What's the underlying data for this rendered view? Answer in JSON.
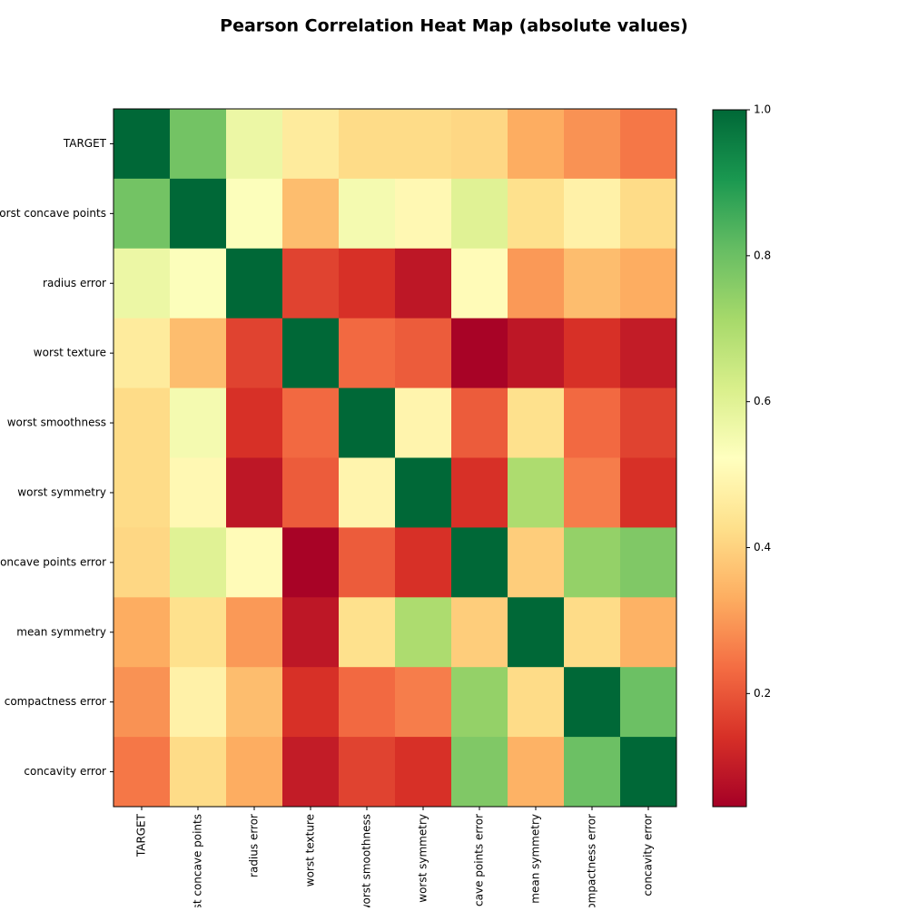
{
  "chart_data": {
    "type": "heatmap",
    "title": "Pearson Correlation Heat Map (absolute values)",
    "categories": [
      "TARGET",
      "worst concave points",
      "radius error",
      "worst texture",
      "worst smoothness",
      "worst symmetry",
      "concave points error",
      "mean symmetry",
      "compactness error",
      "concavity error"
    ],
    "values": [
      [
        1,
        0.79,
        0.57,
        0.46,
        0.42,
        0.42,
        0.41,
        0.33,
        0.29,
        0.25
      ],
      [
        0.79,
        1,
        0.53,
        0.36,
        0.55,
        0.5,
        0.6,
        0.43,
        0.48,
        0.42
      ],
      [
        0.57,
        0.53,
        1,
        0.17,
        0.14,
        0.09,
        0.51,
        0.3,
        0.36,
        0.33
      ],
      [
        0.46,
        0.36,
        0.17,
        1,
        0.23,
        0.21,
        0.05,
        0.09,
        0.14,
        0.1
      ],
      [
        0.42,
        0.55,
        0.14,
        0.23,
        1,
        0.49,
        0.21,
        0.43,
        0.23,
        0.17
      ],
      [
        0.42,
        0.5,
        0.09,
        0.21,
        0.49,
        1,
        0.14,
        0.7,
        0.26,
        0.14
      ],
      [
        0.41,
        0.6,
        0.51,
        0.05,
        0.21,
        0.14,
        1,
        0.39,
        0.74,
        0.77
      ],
      [
        0.33,
        0.43,
        0.3,
        0.09,
        0.43,
        0.7,
        0.39,
        1,
        0.42,
        0.34
      ],
      [
        0.29,
        0.48,
        0.36,
        0.14,
        0.23,
        0.26,
        0.74,
        0.42,
        1,
        0.8
      ],
      [
        0.25,
        0.42,
        0.33,
        0.1,
        0.17,
        0.14,
        0.77,
        0.34,
        0.8,
        1
      ]
    ],
    "colormap": "RdYlGn",
    "zlim": [
      0.045,
      1
    ],
    "zticks": [
      0.2,
      0.4,
      0.6,
      0.8,
      {
        "value": 1,
        "label": "1.0"
      }
    ]
  }
}
